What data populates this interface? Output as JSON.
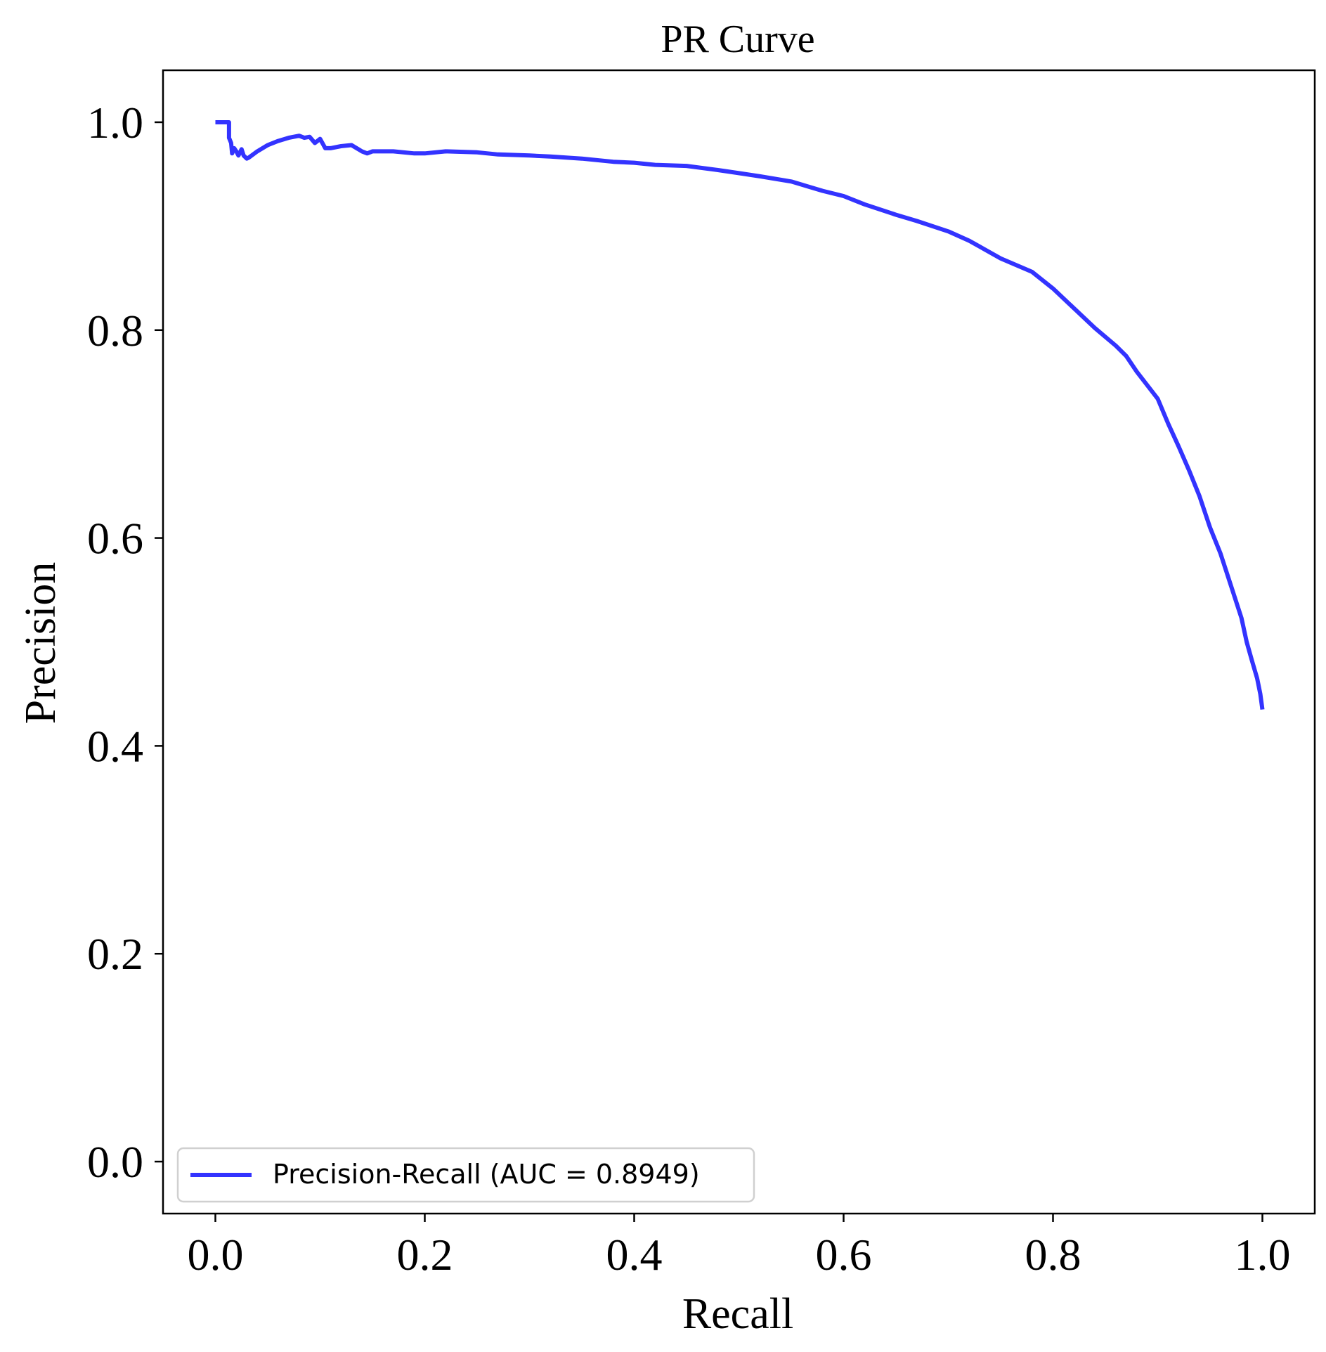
{
  "chart_data": {
    "type": "line",
    "title": "PR Curve",
    "xlabel": "Recall",
    "ylabel": "Precision",
    "xlim": [
      -0.05,
      1.05
    ],
    "ylim": [
      -0.05,
      1.05
    ],
    "xticks": [
      0.0,
      0.2,
      0.4,
      0.6,
      0.8,
      1.0
    ],
    "xtick_labels": [
      "0.0",
      "0.2",
      "0.4",
      "0.6",
      "0.8",
      "1.0"
    ],
    "yticks": [
      0.0,
      0.2,
      0.4,
      0.6,
      0.8,
      1.0
    ],
    "ytick_labels": [
      "0.0",
      "0.2",
      "0.4",
      "0.6",
      "0.8",
      "1.0"
    ],
    "grid": false,
    "legend_position": "lower-left",
    "series": [
      {
        "name": "Precision-Recall (AUC = 0.8949)",
        "color": "#3333ff",
        "x": [
          0.0,
          0.013,
          0.013,
          0.015,
          0.016,
          0.018,
          0.02,
          0.022,
          0.025,
          0.027,
          0.03,
          0.032,
          0.04,
          0.05,
          0.06,
          0.07,
          0.08,
          0.085,
          0.09,
          0.095,
          0.1,
          0.105,
          0.11,
          0.12,
          0.13,
          0.14,
          0.145,
          0.15,
          0.17,
          0.19,
          0.2,
          0.22,
          0.25,
          0.27,
          0.3,
          0.32,
          0.35,
          0.38,
          0.4,
          0.42,
          0.45,
          0.48,
          0.5,
          0.52,
          0.55,
          0.58,
          0.6,
          0.62,
          0.65,
          0.67,
          0.7,
          0.72,
          0.75,
          0.78,
          0.8,
          0.82,
          0.84,
          0.86,
          0.87,
          0.88,
          0.9,
          0.91,
          0.92,
          0.93,
          0.94,
          0.95,
          0.96,
          0.97,
          0.98,
          0.985,
          0.99,
          0.995,
          0.998,
          1.0
        ],
        "y": [
          1.0,
          1.0,
          0.985,
          0.98,
          0.97,
          0.975,
          0.972,
          0.968,
          0.974,
          0.968,
          0.965,
          0.966,
          0.972,
          0.978,
          0.982,
          0.985,
          0.987,
          0.985,
          0.986,
          0.98,
          0.984,
          0.975,
          0.975,
          0.977,
          0.978,
          0.972,
          0.97,
          0.972,
          0.972,
          0.97,
          0.97,
          0.972,
          0.971,
          0.969,
          0.968,
          0.967,
          0.965,
          0.962,
          0.961,
          0.959,
          0.958,
          0.954,
          0.951,
          0.948,
          0.943,
          0.934,
          0.929,
          0.921,
          0.911,
          0.905,
          0.895,
          0.886,
          0.869,
          0.856,
          0.84,
          0.821,
          0.802,
          0.785,
          0.775,
          0.76,
          0.734,
          0.71,
          0.688,
          0.665,
          0.64,
          0.61,
          0.585,
          0.554,
          0.523,
          0.5,
          0.482,
          0.465,
          0.45,
          0.435
        ]
      }
    ]
  }
}
